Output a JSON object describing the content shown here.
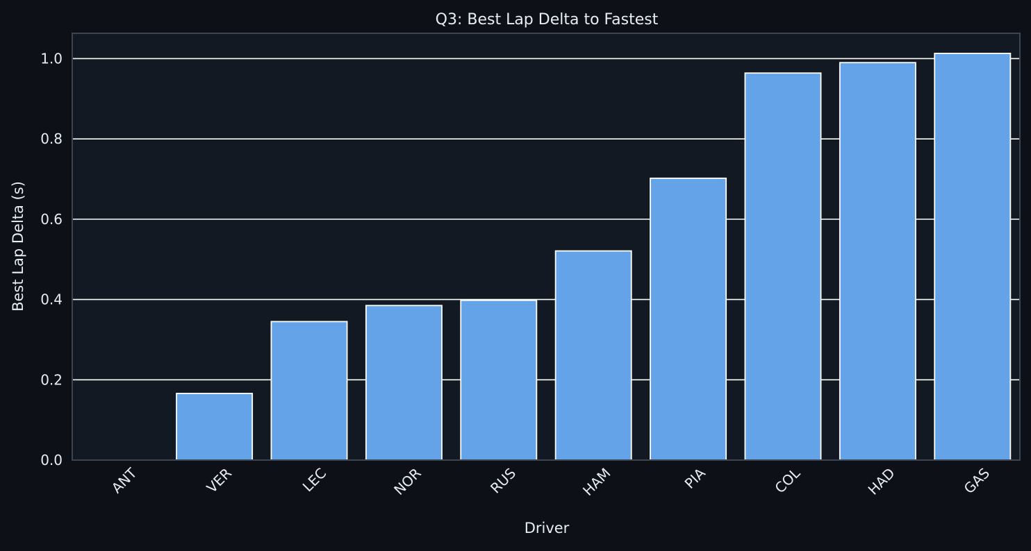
{
  "chart_data": {
    "type": "bar",
    "title": "Q3: Best Lap Delta to Fastest",
    "xlabel": "Driver",
    "ylabel": "Best Lap Delta (s)",
    "categories": [
      "ANT",
      "VER",
      "LEC",
      "NOR",
      "RUS",
      "HAM",
      "PIA",
      "COL",
      "HAD",
      "GAS"
    ],
    "values": [
      0.0,
      0.166,
      0.345,
      0.385,
      0.398,
      0.521,
      0.702,
      0.964,
      0.99,
      1.013
    ],
    "ylim": [
      0,
      1.063
    ],
    "yticks": [
      0.0,
      0.2,
      0.4,
      0.6,
      0.8,
      1.0
    ],
    "ytick_labels": [
      "0.0",
      "0.2",
      "0.4",
      "0.6",
      "0.8",
      "1.0"
    ],
    "grid": "horizontal",
    "colors": {
      "background": "#0d1117",
      "plot_background": "#131922",
      "bar_fill": "#64a3e8",
      "bar_edge": "#ffffff",
      "grid": "#ffffff",
      "axes_border": "#3d4552",
      "text": "#e6edf3"
    }
  }
}
